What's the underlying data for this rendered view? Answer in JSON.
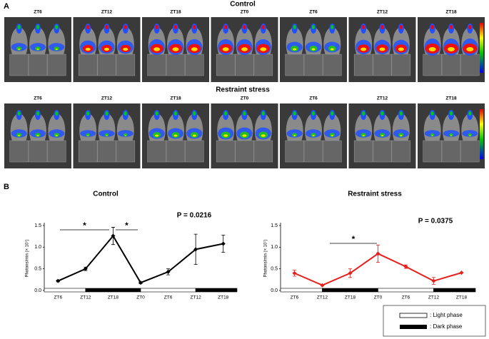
{
  "panel_a": {
    "label": "A",
    "groups": [
      {
        "title": "Control",
        "labels": [
          "ZT6",
          "ZT12",
          "ZT18",
          "ZT0",
          "ZT6",
          "ZT12",
          "ZT18"
        ]
      },
      {
        "title": "Restraint stress",
        "labels": [
          "ZT6",
          "ZT12",
          "ZT18",
          "ZT0",
          "ZT6",
          "ZT12",
          "ZT18"
        ]
      }
    ]
  },
  "panel_b_label": "B",
  "phase_legend": [
    ": Light phase",
    ": Dark phase"
  ],
  "chart_data": [
    {
      "type": "line",
      "title": "Control",
      "y_label": "Photons/min (× 10⁷)",
      "annotation": "P = 0.0216",
      "significance": [
        "*",
        "*"
      ],
      "categories": [
        "ZT6",
        "ZT12",
        "ZT18",
        "ZT0",
        "ZT6",
        "ZT12",
        "ZT18"
      ],
      "series": [
        {
          "name": "Control",
          "color": "#000000",
          "values": [
            0.22,
            0.5,
            1.26,
            0.18,
            0.43,
            0.95,
            1.08
          ],
          "errors": [
            0.02,
            0.04,
            0.2,
            0.02,
            0.07,
            0.35,
            0.2
          ]
        }
      ],
      "ylim": [
        0,
        1.5
      ],
      "yticks": [
        {
          "value": 0,
          "label": "0.0"
        },
        0.5,
        {
          "value": 1,
          "label": "1.0"
        },
        1.5
      ]
    },
    {
      "type": "line",
      "title": "Restraint stress",
      "y_label": "Photons/min (× 10⁷)",
      "annotation": "P = 0.0375",
      "significance": [
        "*"
      ],
      "categories": [
        "ZT6",
        "ZT12",
        "ZT18",
        "ZT0",
        "ZT6",
        "ZT12",
        "ZT18"
      ],
      "series": [
        {
          "name": "Restraint stress",
          "color": "#e8201c",
          "values": [
            0.4,
            0.12,
            0.4,
            0.85,
            0.55,
            0.22,
            0.41
          ],
          "errors": [
            0.07,
            0.01,
            0.1,
            0.2,
            0.04,
            0.08,
            0
          ]
        }
      ],
      "ylim": [
        0,
        1.5
      ],
      "yticks": [
        {
          "value": 0,
          "label": "0.0"
        },
        0.5,
        {
          "value": 1,
          "label": "1.0"
        },
        1.5
      ]
    }
  ]
}
